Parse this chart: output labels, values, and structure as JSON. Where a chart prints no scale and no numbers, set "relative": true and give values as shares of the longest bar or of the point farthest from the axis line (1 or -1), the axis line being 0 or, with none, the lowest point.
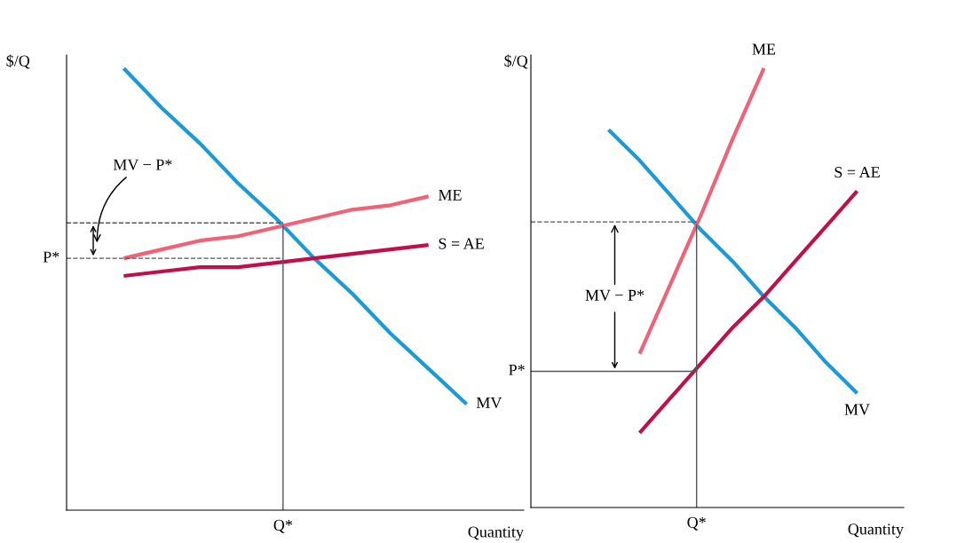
{
  "chart_data": [
    {
      "type": "line",
      "relative": true,
      "ylabel": "$/Q",
      "xlabel": "Quantity",
      "legend": false,
      "categories": [
        null,
        null,
        null,
        null,
        null,
        null,
        null,
        null,
        null,
        null,
        null,
        null
      ],
      "series": [
        {
          "name": "MV",
          "color": "#1a9ad6",
          "values": [
            null,
            1.0,
            0.91,
            0.83,
            0.74,
            0.66,
            0.57,
            0.49,
            0.4,
            0.32,
            0.24,
            null
          ]
        },
        {
          "name": "ME",
          "color": "#f06277",
          "values": [
            null,
            0.57,
            0.59,
            0.61,
            0.62,
            0.64,
            0.66,
            0.68,
            0.69,
            0.71,
            null,
            null
          ]
        },
        {
          "name": "S = AE",
          "color": "#c0104a",
          "values": [
            null,
            0.53,
            0.54,
            0.55,
            0.55,
            0.56,
            0.57,
            0.58,
            0.59,
            0.6,
            null,
            null
          ]
        }
      ],
      "ref_lines": [
        {
          "axis": "y",
          "value": 0.65,
          "line_style": "dashed"
        },
        {
          "axis": "y",
          "value": 0.57,
          "label": "P*",
          "line_style": "dashed"
        },
        {
          "axis": "x",
          "line_style": "solid"
        }
      ],
      "annotations": [
        "MV − P*",
        "Q*"
      ]
    },
    {
      "type": "line",
      "relative": true,
      "ylabel": "$/Q",
      "xlabel": "Quantity",
      "legend": false,
      "categories": [
        null,
        null,
        null,
        null,
        null,
        null,
        null,
        null,
        null,
        null,
        null,
        null
      ],
      "series": [
        {
          "name": "MV",
          "color": "#1a9ad6",
          "values": [
            null,
            null,
            0.86,
            0.79,
            0.71,
            0.63,
            0.56,
            0.48,
            0.41,
            0.33,
            0.26,
            null
          ]
        },
        {
          "name": "ME",
          "color": "#f06277",
          "values": [
            null,
            null,
            null,
            0.35,
            0.51,
            0.67,
            0.84,
            1.0,
            null,
            null,
            null,
            null
          ]
        },
        {
          "name": "S = AE",
          "color": "#c0104a",
          "values": [
            null,
            null,
            null,
            0.17,
            0.25,
            0.33,
            0.41,
            0.48,
            0.56,
            0.64,
            0.72,
            null
          ]
        }
      ],
      "ref_lines": [
        {
          "axis": "y",
          "value": 0.65,
          "line_style": "dashed"
        },
        {
          "axis": "y",
          "value": 0.31,
          "label": "P*",
          "line_style": "solid"
        },
        {
          "axis": "x",
          "line_style": "solid"
        }
      ],
      "annotations": [
        "MV − P*",
        "Q*"
      ]
    }
  ]
}
